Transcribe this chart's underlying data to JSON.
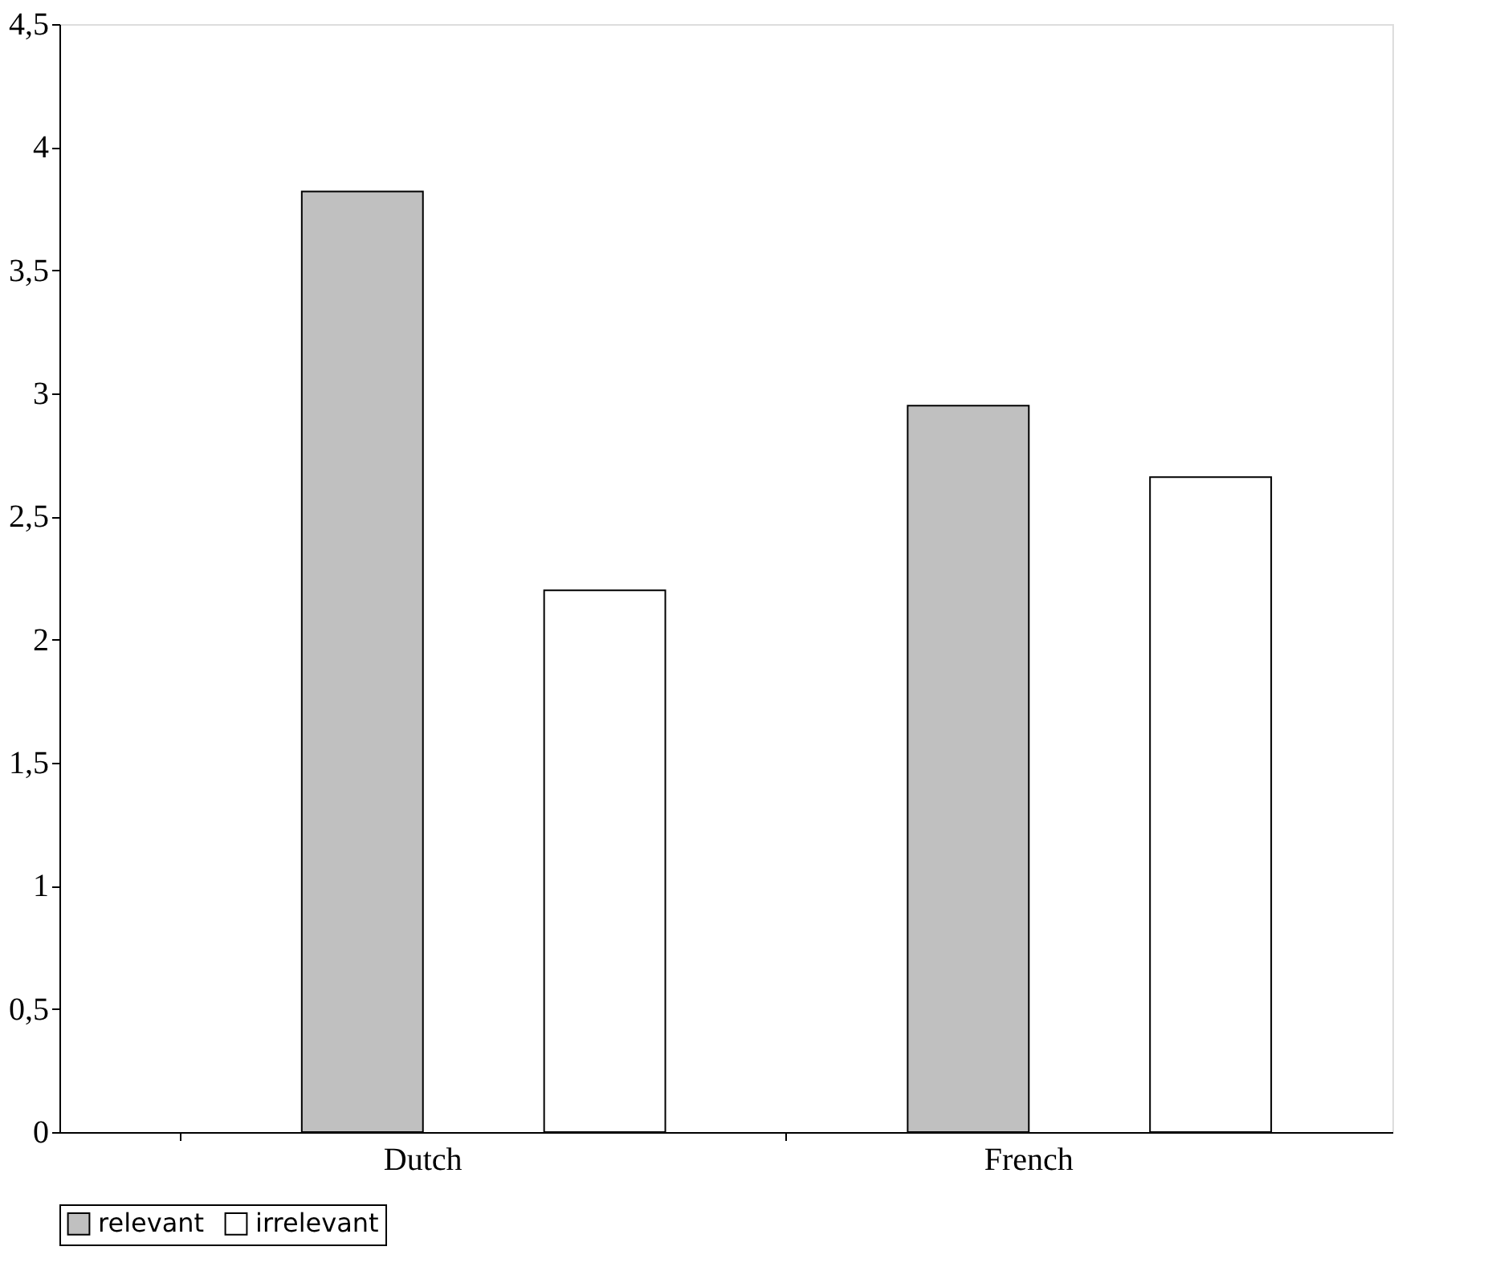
{
  "chart_data": {
    "type": "bar",
    "categories": [
      "Dutch",
      "French"
    ],
    "series": [
      {
        "name": "relevant",
        "color": "#c0c0c0",
        "values": [
          3.82,
          2.95
        ]
      },
      {
        "name": "irrelevant",
        "color": "#ffffff",
        "values": [
          2.2,
          2.66
        ]
      }
    ],
    "ylim": [
      0,
      4.5
    ],
    "yticks": [
      0,
      {
        "value": 0.5,
        "label": "0,5"
      },
      1,
      {
        "value": 1.5,
        "label": "1,5"
      },
      2,
      {
        "value": 2.5,
        "label": "2,5"
      },
      3,
      {
        "value": 3.5,
        "label": "3,5"
      },
      4,
      {
        "value": 4.5,
        "label": "4,5"
      }
    ],
    "grid": false,
    "legend": "bottom"
  }
}
